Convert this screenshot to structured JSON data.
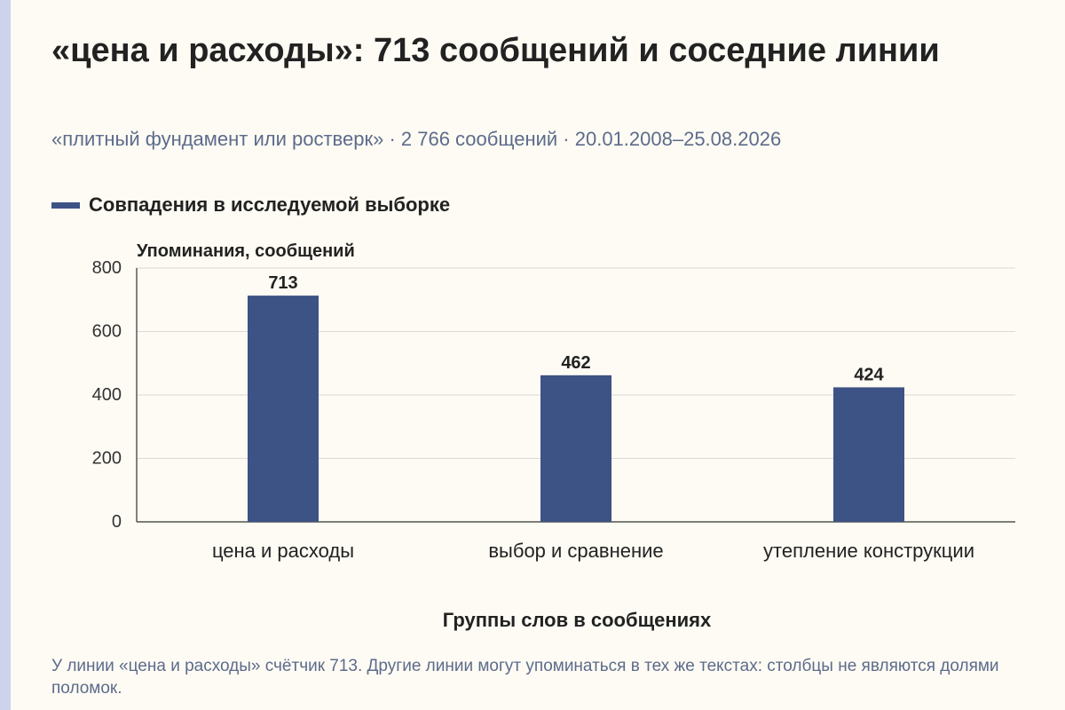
{
  "header": {
    "title": "«цена и расходы»: 713 сообщений и соседние линии",
    "subtitle": "«плитный фундамент или ростверк» · 2 766 сообщений · 20.01.2008–25.08.2026"
  },
  "legend": {
    "label": "Совпадения в исследуемой выборке",
    "color": "#3d5285"
  },
  "chart_data": {
    "type": "bar",
    "ylabel": "Упоминания, сообщений",
    "xlabel": "Группы слов в сообщениях",
    "ylim": [
      0,
      800
    ],
    "yticks": [
      0,
      200,
      400,
      600,
      800
    ],
    "categories": [
      "цена и расходы",
      "выбор и сравнение",
      "утепление конструкции"
    ],
    "series": [
      {
        "name": "Совпадения в исследуемой выборке",
        "values": [
          713,
          462,
          424
        ],
        "color": "#3d5285"
      }
    ],
    "grid": true
  },
  "footnote": "У линии «цена и расходы» счётчик 713. Другие линии могут упоминаться в тех же текстах: столбцы не являются долями поломок."
}
